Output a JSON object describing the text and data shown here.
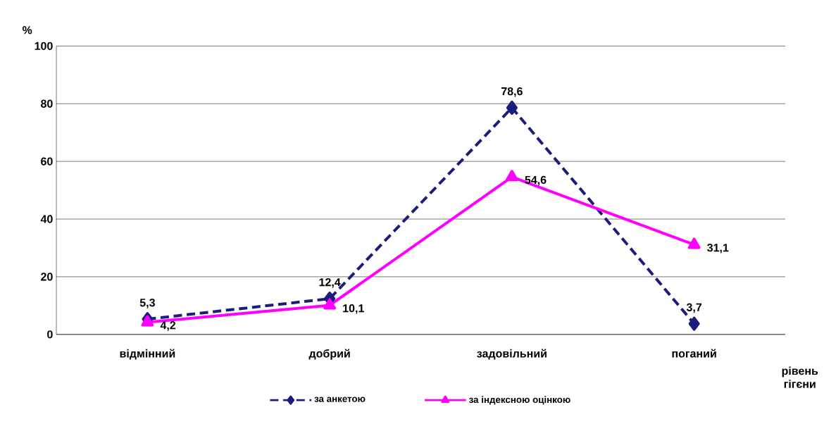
{
  "chart_data": {
    "type": "line",
    "ylabel": "%",
    "xlabel": "рівень гігєни",
    "categories": [
      "відмінний",
      "добрий",
      "задовільний",
      "поганий"
    ],
    "series": [
      {
        "name": "за анкетою",
        "color": "#1c1c7c",
        "values": [
          5.3,
          12.4,
          78.6,
          3.7
        ],
        "value_labels": [
          "5,3",
          "12,4",
          "78,6",
          "3,7"
        ],
        "marker": "diamond",
        "line_style": "dashed"
      },
      {
        "name": "за індексною оцінкою",
        "color": "#ff00ff",
        "values": [
          4.2,
          10.1,
          54.6,
          31.1
        ],
        "value_labels": [
          "4,2",
          "10,1",
          "54,6",
          "31,1"
        ],
        "marker": "triangle",
        "line_style": "solid"
      }
    ],
    "ylim": [
      0,
      100
    ],
    "yticks": [
      0,
      20,
      40,
      60,
      80,
      100
    ],
    "grid": "y",
    "legend": "bottom"
  }
}
